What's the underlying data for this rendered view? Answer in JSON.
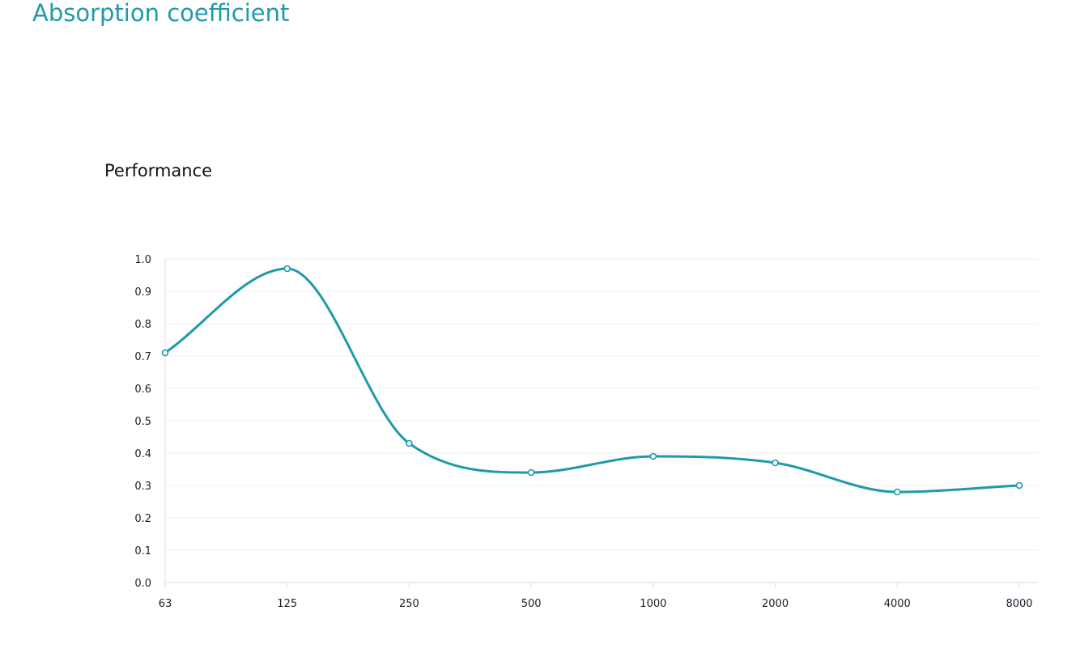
{
  "page": {
    "title": "Absorption coefficient"
  },
  "chart_data": {
    "type": "line",
    "title": "Performance",
    "xlabel": "",
    "ylabel": "",
    "categories": [
      "63",
      "125",
      "250",
      "500",
      "1000",
      "2000",
      "4000",
      "8000"
    ],
    "series": [
      {
        "name": "Absorption coefficient",
        "values": [
          0.71,
          0.97,
          0.43,
          0.34,
          0.39,
          0.37,
          0.28,
          0.3
        ]
      }
    ],
    "ylim": [
      0,
      1.0
    ],
    "yticks": [
      "0.0",
      "0.1",
      "0.2",
      "0.3",
      "0.4",
      "0.5",
      "0.6",
      "0.7",
      "0.8",
      "0.9",
      "1.0"
    ],
    "grid": true,
    "smooth": true,
    "colors": {
      "line": "#1e9aaa",
      "marker_fill": "#ffffff",
      "grid": "#efefef",
      "axis": "#dcdcdc",
      "title": "#1e9aaa"
    }
  }
}
